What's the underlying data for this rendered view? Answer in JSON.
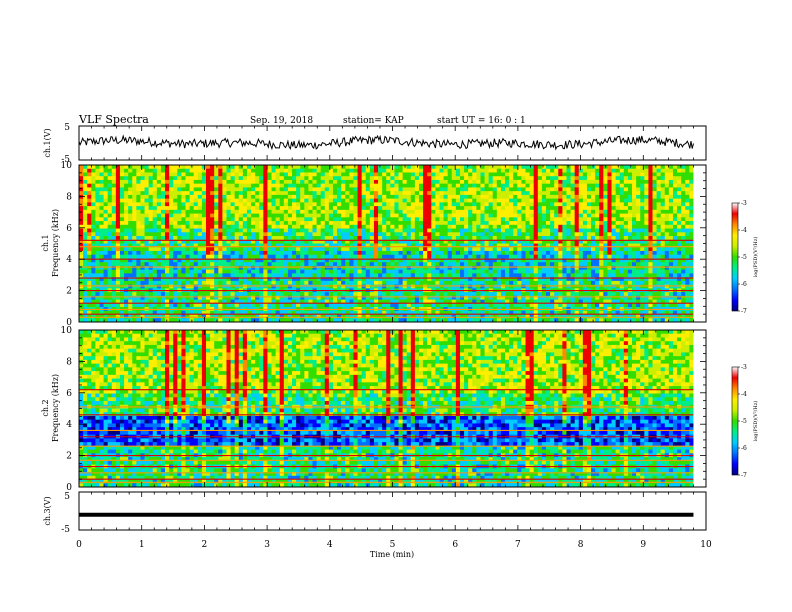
{
  "header": {
    "title": "VLF Spectra",
    "date": "Sep. 19, 2018",
    "station": "station= KAP",
    "start": "start UT = 16: 0 : 1"
  },
  "colors": {
    "colormap": [
      "#000080",
      "#0000ff",
      "#0070ff",
      "#00ccff",
      "#00ee88",
      "#33dd00",
      "#ccee00",
      "#ffee00",
      "#ff8800",
      "#ee0000",
      "#ffffff"
    ],
    "trace": "#000000"
  },
  "chart_data": [
    {
      "type": "line",
      "name": "ch1-waveform",
      "ylabel": "ch.1(V)",
      "ylim": [
        -5,
        5
      ],
      "yticks": [
        "5",
        "-5"
      ],
      "xlim": [
        0,
        10
      ],
      "x_end": 9.8,
      "description_values": "noisy waveform roughly between -2 and +2 V"
    },
    {
      "type": "heatmap",
      "name": "ch1-spectrogram",
      "ylabel": "ch.1\nFrequency (kHz)",
      "ylabel_lines": [
        "ch.1",
        "Frequency (kHz)"
      ],
      "yticks": [
        "0",
        "2",
        "4",
        "6",
        "8",
        "10"
      ],
      "ylim": [
        0,
        10
      ],
      "xlim": [
        0,
        10
      ],
      "x_end": 9.8,
      "colorbar": {
        "label": "log(PSD)(V²/Hz)",
        "range": [
          -7,
          -3
        ],
        "ticks": [
          "-3",
          "-4",
          "-5",
          "-6",
          "-7"
        ]
      },
      "bands_khz": [
        0.3,
        0.5,
        0.8,
        1.2,
        1.6,
        2.0,
        2.3,
        2.8,
        3.5,
        4.0,
        4.8,
        5.2
      ]
    },
    {
      "type": "heatmap",
      "name": "ch2-spectrogram",
      "ylabel": "ch.2\nFrequency (kHz)",
      "ylabel_lines": [
        "ch.2",
        "Frequency (kHz)"
      ],
      "yticks": [
        "0",
        "2",
        "4",
        "6",
        "8",
        "10"
      ],
      "ylim": [
        0,
        10
      ],
      "xlim": [
        0,
        10
      ],
      "x_end": 9.8,
      "colorbar": {
        "label": "log(PSD)(V²/Hz)",
        "range": [
          -7,
          -3
        ],
        "ticks": [
          "-3",
          "-4",
          "-5",
          "-6",
          "-7"
        ]
      },
      "bands_khz": [
        0.3,
        0.5,
        0.9,
        1.3,
        1.7,
        2.0,
        2.6,
        3.2,
        3.6,
        4.6,
        5.1,
        6.2
      ]
    },
    {
      "type": "line",
      "name": "ch3-waveform",
      "ylabel": "ch.3(V)",
      "ylim": [
        -5,
        5
      ],
      "yticks": [
        "5",
        "-5"
      ],
      "xlim": [
        0,
        10
      ],
      "x_end": 9.8,
      "constant_value": -1
    }
  ],
  "xaxis": {
    "label": "Time (min)",
    "ticks": [
      "0",
      "1",
      "2",
      "3",
      "4",
      "5",
      "6",
      "7",
      "8",
      "9",
      "10"
    ],
    "range": [
      0,
      10
    ]
  }
}
